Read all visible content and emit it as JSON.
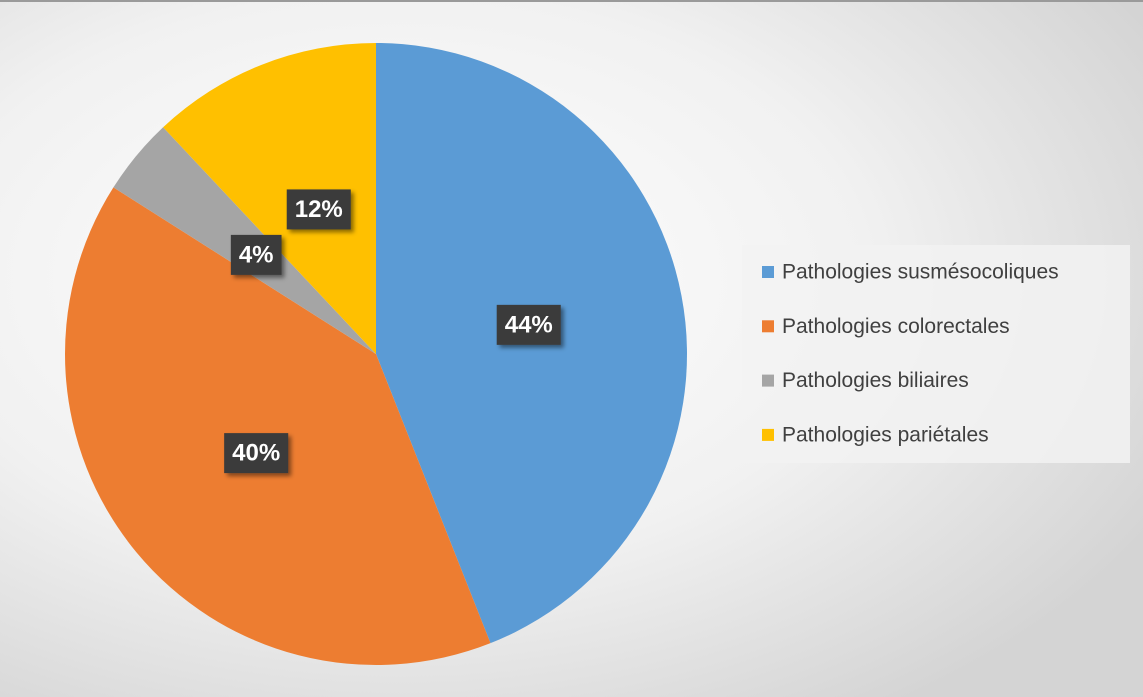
{
  "chart_data": {
    "type": "pie",
    "categories": [
      "Pathologies susmésocoliques",
      "Pathologies colorectales",
      "Pathologies biliaires",
      "Pathologies pariétales"
    ],
    "values": [
      44,
      40,
      4,
      12
    ],
    "value_labels": [
      "44%",
      "40%",
      "4%",
      "12%"
    ],
    "colors": [
      "#5b9bd5",
      "#ed7d31",
      "#a5a5a5",
      "#ffc000"
    ],
    "legend": "right"
  }
}
